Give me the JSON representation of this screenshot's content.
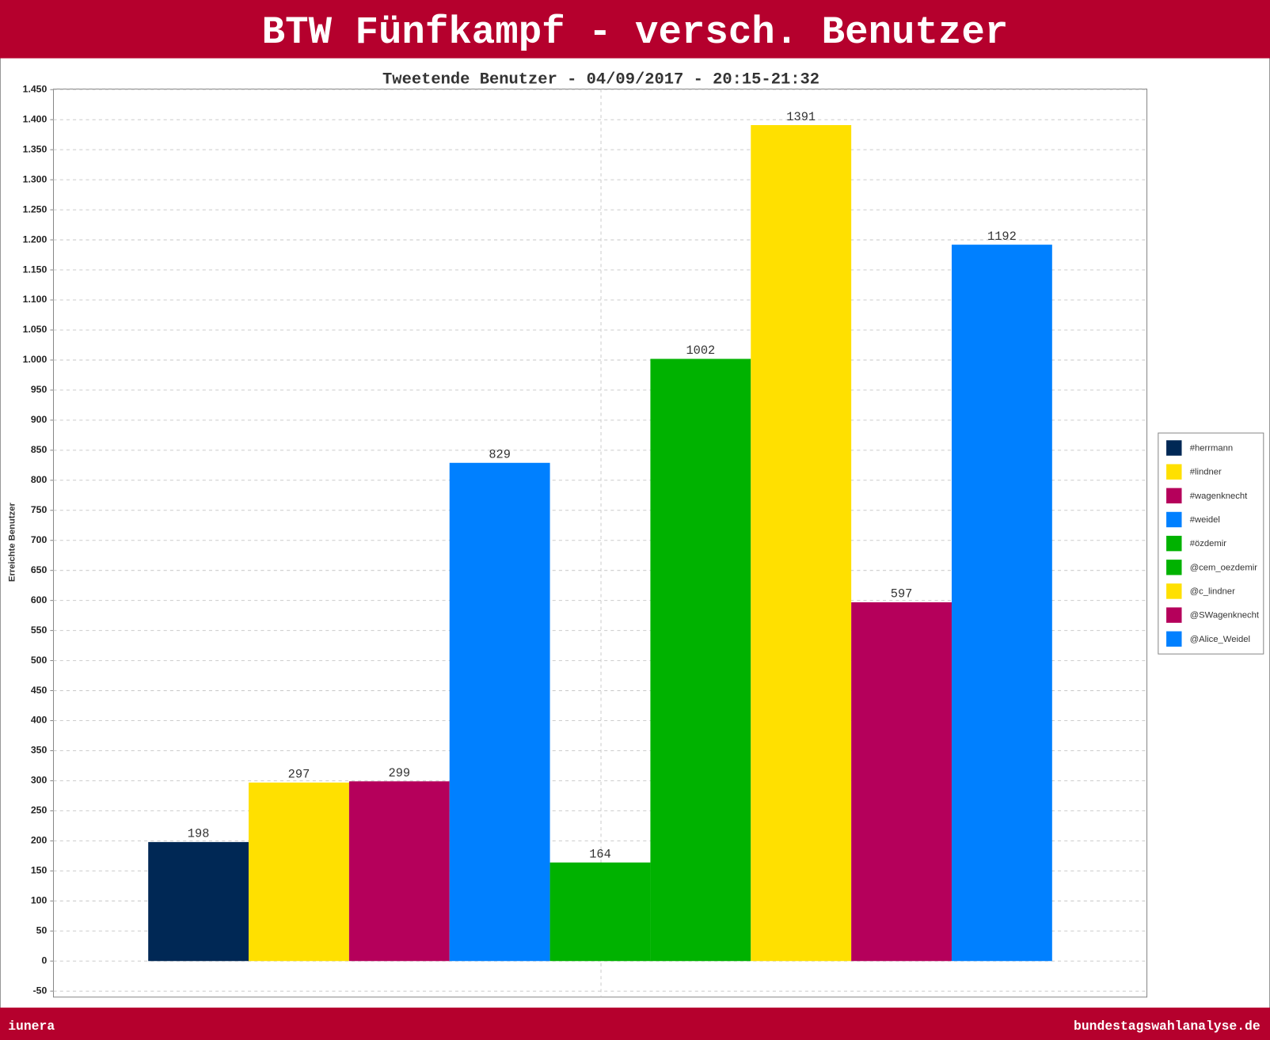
{
  "header": {
    "title": "BTW Fünfkampf - versch. Benutzer"
  },
  "footer": {
    "left": "iunera",
    "right": "bundestagswahlanalyse.de"
  },
  "chart_data": {
    "type": "bar",
    "title": "Tweetende Benutzer - 04/09/2017 - 20:15-21:32",
    "y_label": "Erreichte Benutzer",
    "series": [
      {
        "name": "#herrmann",
        "color": "#002855",
        "values": [
          198
        ]
      },
      {
        "name": "#lindner",
        "color": "#ffe000",
        "values": [
          297
        ]
      },
      {
        "name": "#wagenknecht",
        "color": "#b5005b",
        "values": [
          299
        ]
      },
      {
        "name": "#weidel",
        "color": "#0080ff",
        "values": [
          829
        ]
      },
      {
        "name": "#özdemir",
        "color": "#00b200",
        "values": [
          164
        ]
      },
      {
        "name": "@cem_oezdemir",
        "color": "#00b200",
        "values": [
          1002
        ]
      },
      {
        "name": "@c_lindner",
        "color": "#ffe000",
        "values": [
          1391
        ]
      },
      {
        "name": "@SWagenknecht",
        "color": "#b5005b",
        "values": [
          597
        ]
      },
      {
        "name": "@Alice_Weidel",
        "color": "#0080ff",
        "values": [
          1192
        ]
      }
    ],
    "ylim": [
      -60,
      1451
    ],
    "yticks": [
      -50,
      0,
      50,
      100,
      150,
      200,
      250,
      300,
      350,
      400,
      450,
      500,
      550,
      600,
      650,
      700,
      750,
      800,
      850,
      900,
      950,
      {
        "value": 1000,
        "label": "1.000"
      },
      {
        "value": 1050,
        "label": "1.050"
      },
      {
        "value": 1100,
        "label": "1.100"
      },
      {
        "value": 1150,
        "label": "1.150"
      },
      {
        "value": 1200,
        "label": "1.200"
      },
      {
        "value": 1250,
        "label": "1.250"
      },
      {
        "value": 1300,
        "label": "1.300"
      },
      {
        "value": 1350,
        "label": "1.350"
      },
      {
        "value": 1400,
        "label": "1.400"
      },
      {
        "value": 1450,
        "label": "1.450"
      }
    ],
    "grid": true,
    "legend": "right"
  }
}
